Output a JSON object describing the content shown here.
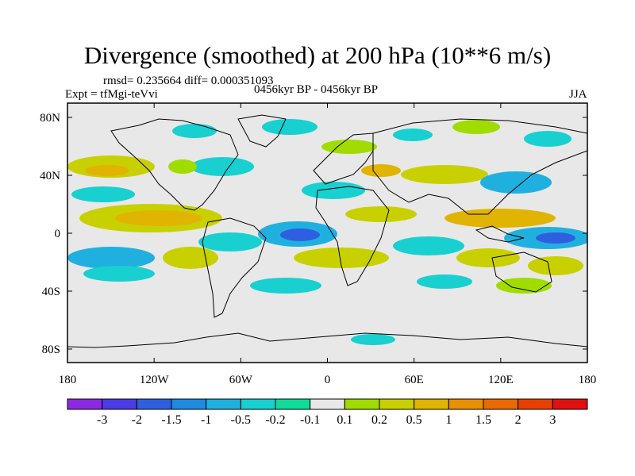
{
  "title": "Divergence (smoothed) at 200 hPa (10**6 m/s)",
  "stats": "rmsd= 0.235664 diff= 0.000351093",
  "expt": "Expt = tfMgi-teVvi",
  "period": "0456kyr BP - 0456kyr BP",
  "season": "JJA",
  "axes": {
    "x_ticks": [
      "180",
      "120W",
      "60W",
      "0",
      "60E",
      "120E",
      "180"
    ],
    "y_ticks": [
      "80N",
      "40N",
      "0",
      "40S",
      "80S"
    ]
  },
  "colorbar": {
    "labels": [
      "-3",
      "-2",
      "-1.5",
      "-1",
      "-0.5",
      "-0.2",
      "-0.1",
      "0.1",
      "0.2",
      "0.5",
      "1",
      "1.5",
      "2",
      "3"
    ],
    "colors": [
      "#8a2be2",
      "#4b3ce6",
      "#2f5fe0",
      "#1e8ae0",
      "#20b0e0",
      "#18d0d0",
      "#10dc9a",
      "#e8e8e8",
      "#a0dc00",
      "#c8d000",
      "#e0b400",
      "#e89000",
      "#e86a00",
      "#e84000",
      "#e01010"
    ]
  },
  "colors": {
    "land_ocean": "#e8e8e8",
    "positive": "#b8d818",
    "negative": "#18c8d8"
  }
}
